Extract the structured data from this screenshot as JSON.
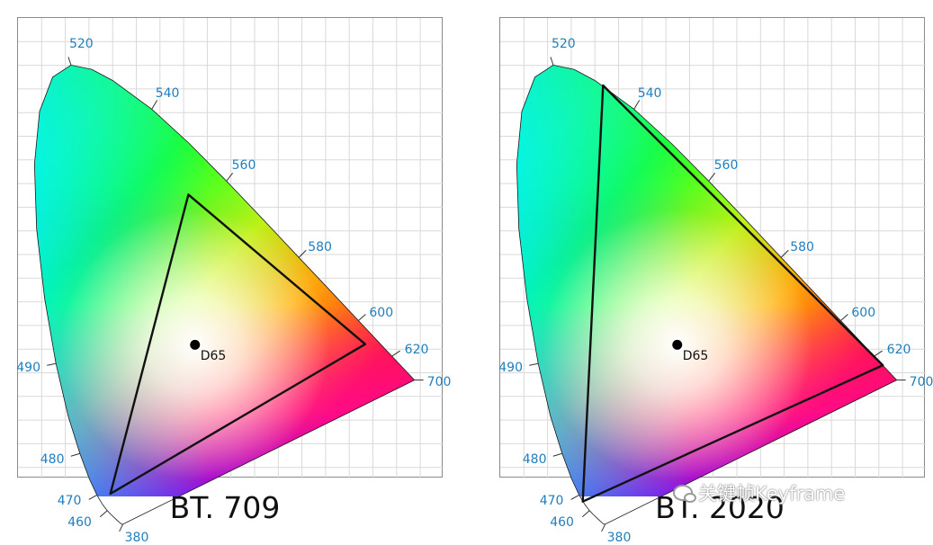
{
  "panels": [
    {
      "caption": "BT. 709",
      "whitepoint_label": "D65",
      "wavelength_labels": [
        "520",
        "540",
        "560",
        "580",
        "600",
        "620",
        "700",
        "490",
        "480",
        "470",
        "460",
        "380"
      ],
      "gamut_primaries": {
        "red": [
          0.64,
          0.33
        ],
        "green": [
          0.3,
          0.6
        ],
        "blue": [
          0.15,
          0.06
        ]
      },
      "whitepoint": [
        0.3127,
        0.329
      ]
    },
    {
      "caption": "BT. 2020",
      "whitepoint_label": "D65",
      "wavelength_labels": [
        "520",
        "540",
        "560",
        "580",
        "600",
        "620",
        "700",
        "490",
        "480",
        "470",
        "460",
        "380"
      ],
      "gamut_primaries": {
        "red": [
          0.708,
          0.292
        ],
        "green": [
          0.17,
          0.797
        ],
        "blue": [
          0.131,
          0.046
        ]
      },
      "whitepoint": [
        0.3127,
        0.329
      ]
    }
  ],
  "watermark": "关键帧Keyframe",
  "watermark_icon": "wechat-icon",
  "colors": {
    "wavelength_label": "#1f7fbf",
    "grid": "#d9d9d9",
    "gamut_outline": "#111111"
  }
}
